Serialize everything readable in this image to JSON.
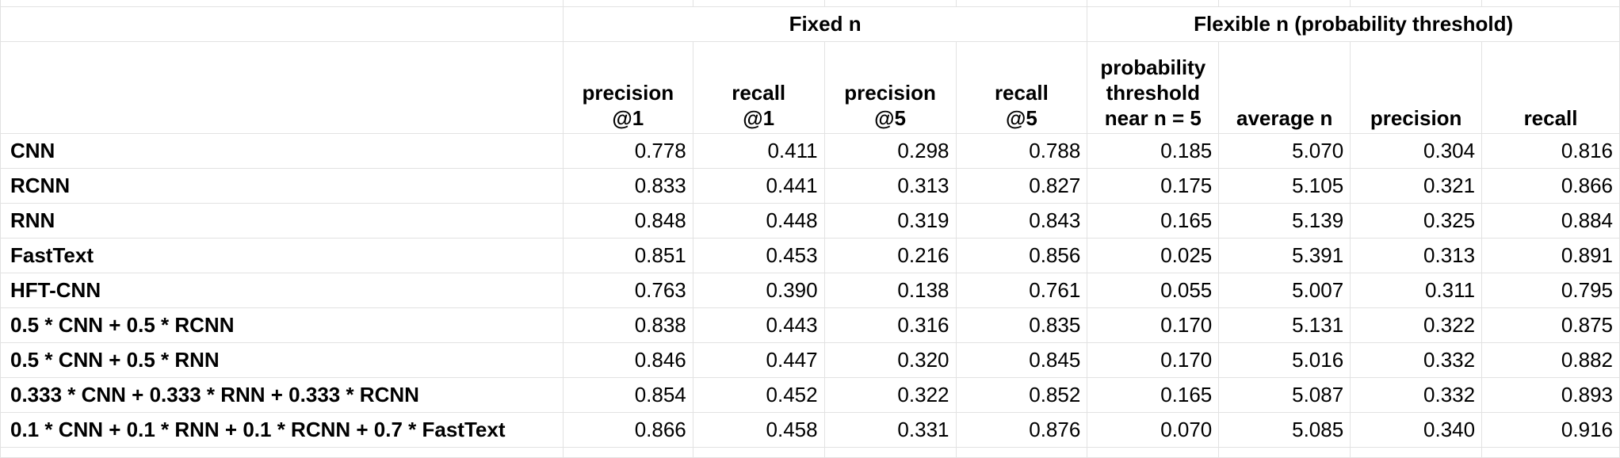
{
  "group_headers": {
    "fixed": "Fixed n",
    "flexible": "Flexible n (probability threshold)"
  },
  "column_headers": [
    [
      "precision",
      "@1"
    ],
    [
      "recall",
      "@1"
    ],
    [
      "precision",
      "@5"
    ],
    [
      "recall",
      "@5"
    ],
    [
      "probability",
      "threshold",
      "near n = 5"
    ],
    [
      "average n"
    ],
    [
      "precision"
    ],
    [
      "recall"
    ]
  ],
  "rows": [
    {
      "name": "CNN",
      "values": [
        "0.778",
        "0.411",
        "0.298",
        "0.788",
        "0.185",
        "5.070",
        "0.304",
        "0.816"
      ]
    },
    {
      "name": "RCNN",
      "values": [
        "0.833",
        "0.441",
        "0.313",
        "0.827",
        "0.175",
        "5.105",
        "0.321",
        "0.866"
      ]
    },
    {
      "name": "RNN",
      "values": [
        "0.848",
        "0.448",
        "0.319",
        "0.843",
        "0.165",
        "5.139",
        "0.325",
        "0.884"
      ]
    },
    {
      "name": "FastText",
      "values": [
        "0.851",
        "0.453",
        "0.216",
        "0.856",
        "0.025",
        "5.391",
        "0.313",
        "0.891"
      ]
    },
    {
      "name": "HFT-CNN",
      "values": [
        "0.763",
        "0.390",
        "0.138",
        "0.761",
        "0.055",
        "5.007",
        "0.311",
        "0.795"
      ]
    },
    {
      "name": "0.5 * CNN + 0.5 * RCNN",
      "values": [
        "0.838",
        "0.443",
        "0.316",
        "0.835",
        "0.170",
        "5.131",
        "0.322",
        "0.875"
      ]
    },
    {
      "name": "0.5 * CNN + 0.5 * RNN",
      "values": [
        "0.846",
        "0.447",
        "0.320",
        "0.845",
        "0.170",
        "5.016",
        "0.332",
        "0.882"
      ]
    },
    {
      "name": "0.333 * CNN + 0.333 * RNN + 0.333 * RCNN",
      "values": [
        "0.854",
        "0.452",
        "0.322",
        "0.852",
        "0.165",
        "5.087",
        "0.332",
        "0.893"
      ]
    },
    {
      "name": "0.1 * CNN + 0.1 * RNN + 0.1 * RCNN + 0.7 * FastText",
      "values": [
        "0.866",
        "0.458",
        "0.331",
        "0.876",
        "0.070",
        "5.085",
        "0.340",
        "0.916"
      ]
    }
  ]
}
